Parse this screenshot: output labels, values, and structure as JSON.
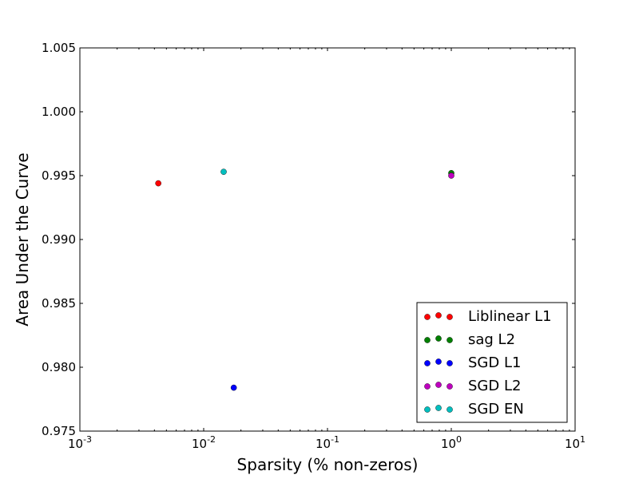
{
  "chart_data": {
    "type": "scatter",
    "title": "",
    "xlabel": "Sparsity (% non-zeros)",
    "ylabel": "Area Under the Curve",
    "xscale": "log",
    "xlim": [
      0.001,
      10
    ],
    "ylim": [
      0.975,
      1.005
    ],
    "x_ticks": [
      0.001,
      0.01,
      0.1,
      1,
      10
    ],
    "x_tick_labels": [
      {
        "base": "10",
        "exp": "-3"
      },
      {
        "base": "10",
        "exp": "-2"
      },
      {
        "base": "10",
        "exp": "-1"
      },
      {
        "base": "10",
        "exp": "0"
      },
      {
        "base": "10",
        "exp": "1"
      }
    ],
    "y_ticks": [
      0.975,
      0.98,
      0.985,
      0.99,
      0.995,
      1.0,
      1.005
    ],
    "y_tick_labels": [
      "0.975",
      "0.980",
      "0.985",
      "0.990",
      "0.995",
      "1.000",
      "1.005"
    ],
    "grid": false,
    "legend_position": "bottom-right",
    "series": [
      {
        "name": "Liblinear L1",
        "color": "#ff0000",
        "points": [
          {
            "x": 0.0043,
            "y": 0.9944
          }
        ]
      },
      {
        "name": "sag L2",
        "color": "#008000",
        "points": [
          {
            "x": 1.0,
            "y": 0.9952
          }
        ]
      },
      {
        "name": "SGD L1",
        "color": "#0000ff",
        "points": [
          {
            "x": 0.0175,
            "y": 0.9784
          }
        ]
      },
      {
        "name": "SGD L2",
        "color": "#bf00bf",
        "points": [
          {
            "x": 1.0,
            "y": 0.995
          }
        ]
      },
      {
        "name": "SGD EN",
        "color": "#00bfbf",
        "points": [
          {
            "x": 0.0145,
            "y": 0.9953
          }
        ]
      }
    ]
  }
}
